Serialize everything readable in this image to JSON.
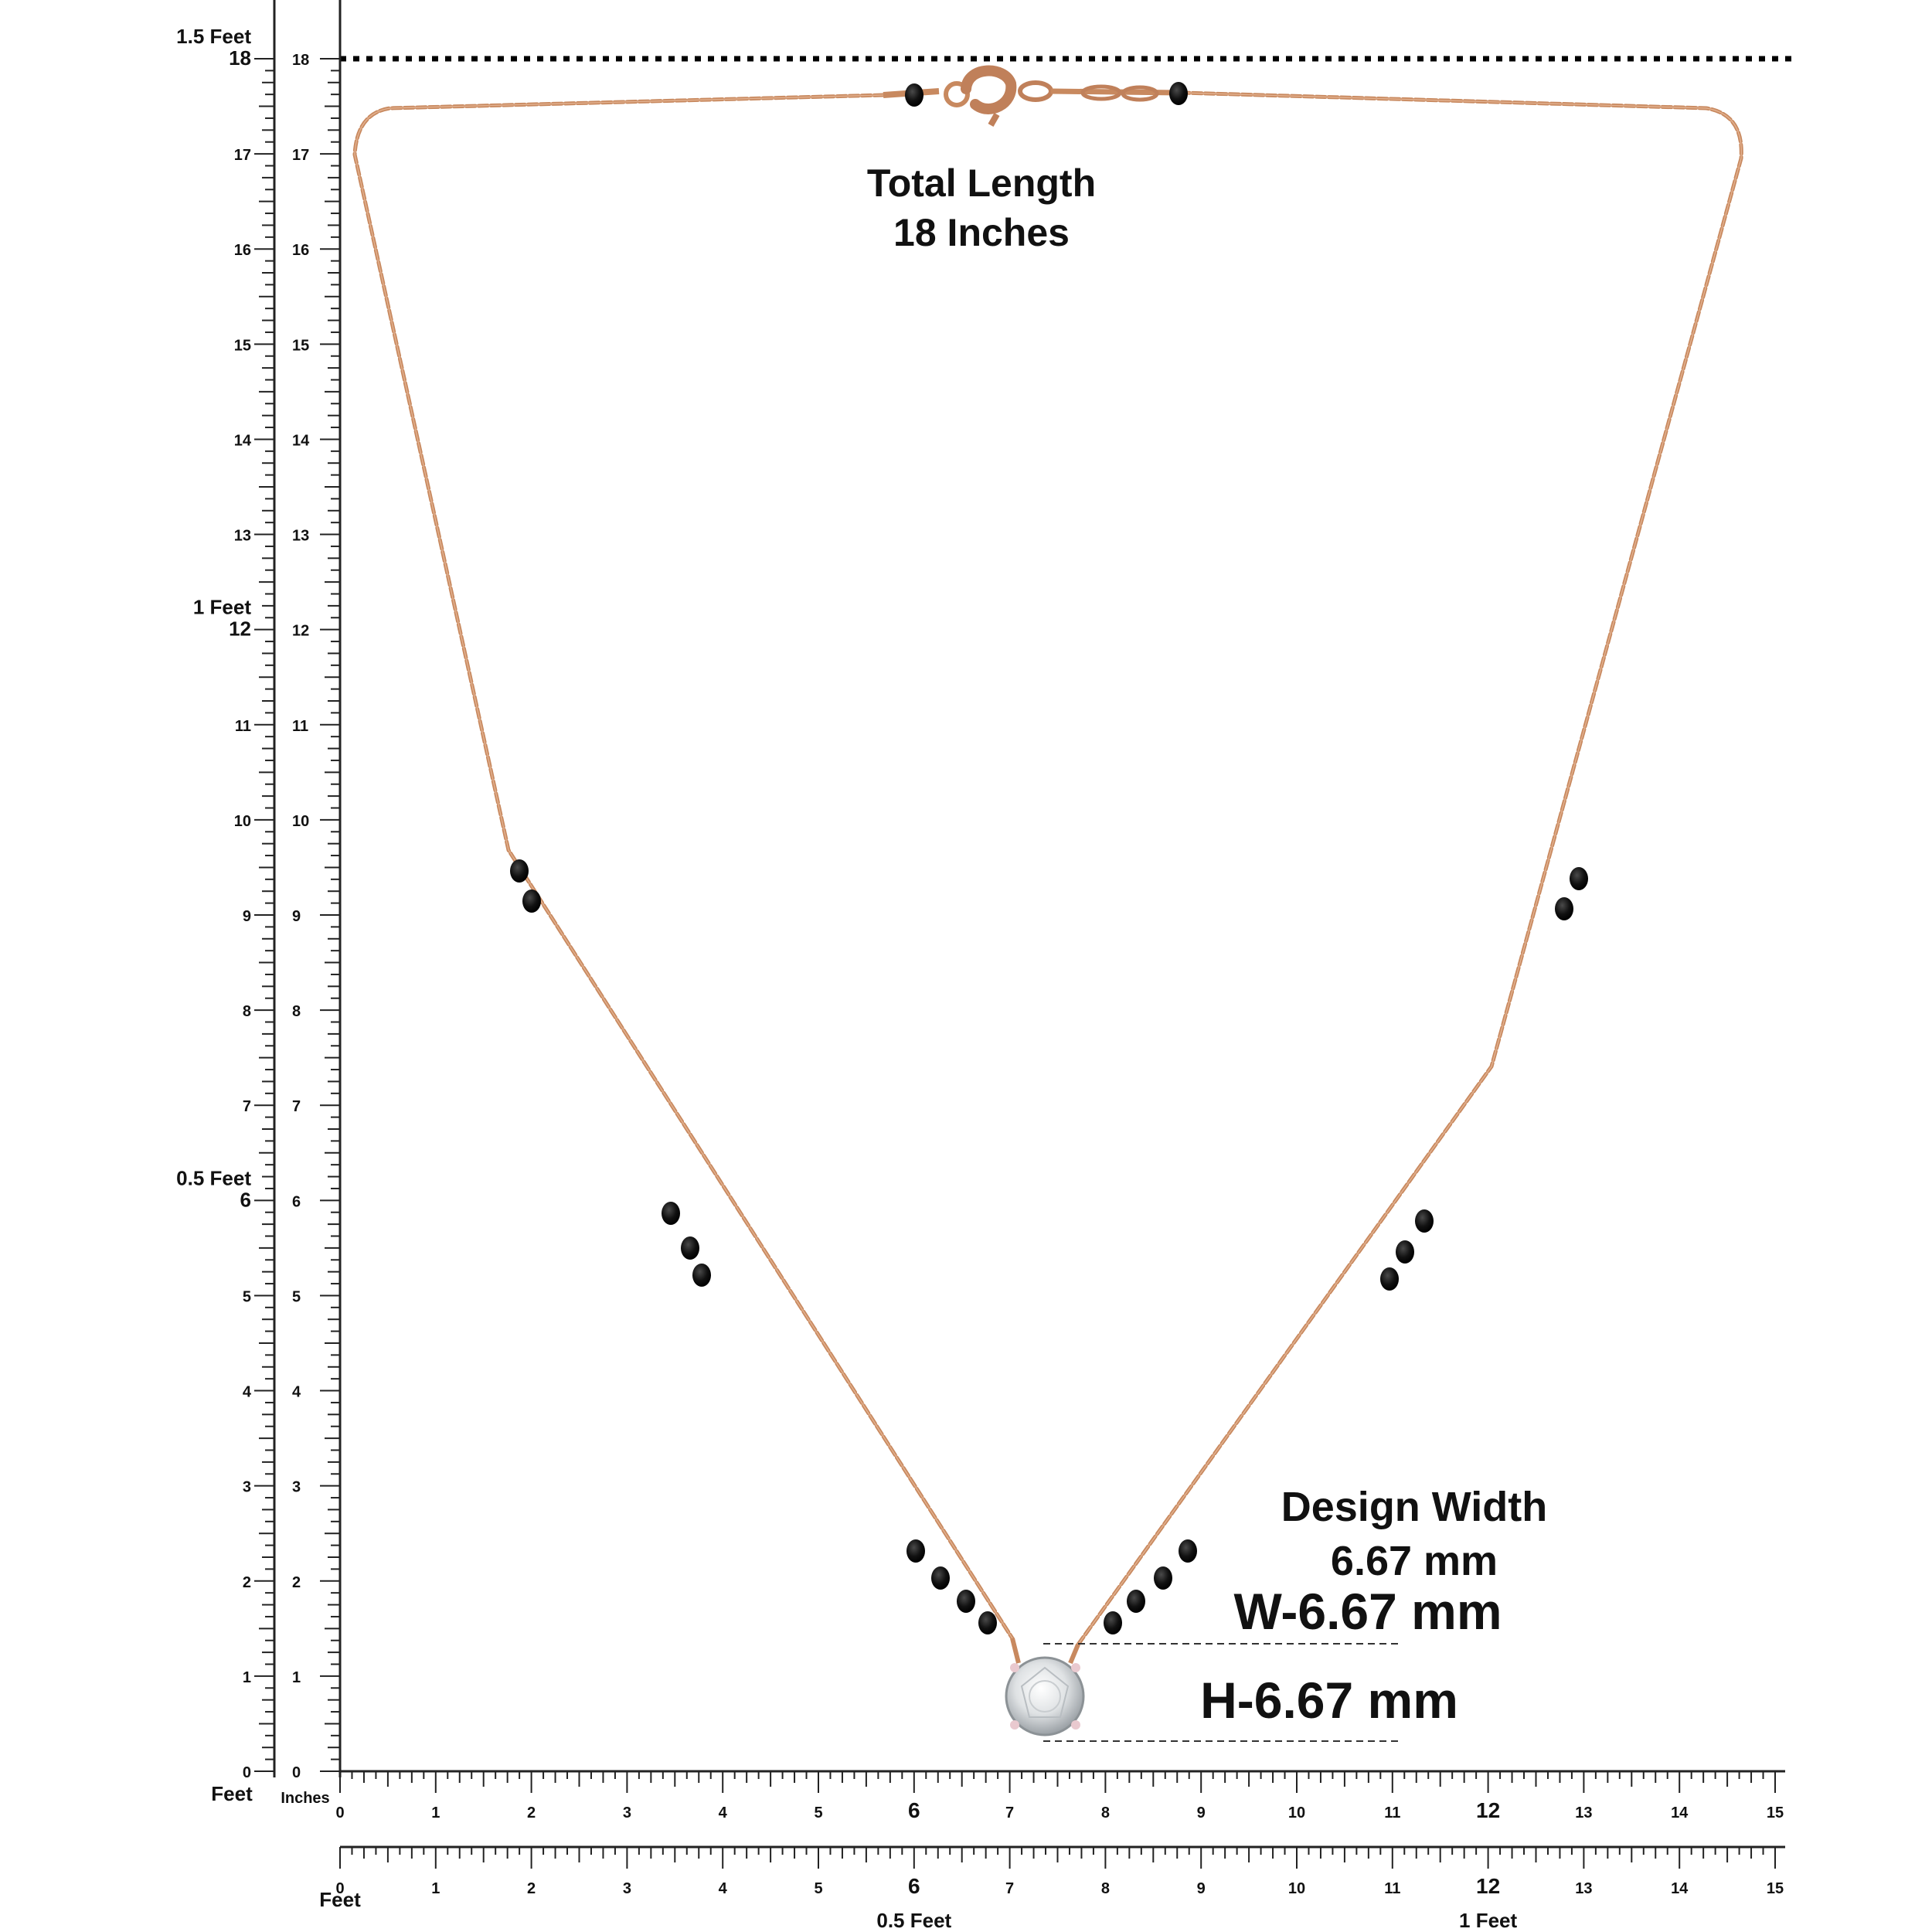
{
  "image": {
    "subject": "Necklace with black beads, lobster clasp and a solitaire pendant, shown against measurement rulers",
    "colors": {
      "chain": "#c8895f",
      "bead": "#111111",
      "stone": "#e6e8ea",
      "ruler": "#222222",
      "background": "#ffffff"
    }
  },
  "labels": {
    "total_length_title": "Total Length",
    "total_length_value": "18 Inches",
    "design_width_title": "Design Width",
    "design_width_value": "6.67 mm",
    "width_dimension": "W-6.67 mm",
    "height_dimension": "H-6.67 mm"
  },
  "vertical_ruler": {
    "feet_marks": [
      {
        "inch": 18,
        "label": "1.5 Feet"
      },
      {
        "inch": 12,
        "label": "1 Feet"
      },
      {
        "inch": 6,
        "label": "0.5 Feet"
      }
    ],
    "bottom_unit_feet": "Feet",
    "bottom_unit_inches": "Inches",
    "inch_labels": [
      "0",
      "1",
      "2",
      "3",
      "4",
      "5",
      "6",
      "7",
      "8",
      "9",
      "10",
      "11",
      "12",
      "13",
      "14",
      "15",
      "16",
      "17",
      "18"
    ]
  },
  "horizontal_ruler_top": {
    "inch_labels": [
      "0",
      "1",
      "2",
      "3",
      "4",
      "5",
      "6",
      "7",
      "8",
      "9",
      "10",
      "11",
      "12",
      "13",
      "14",
      "15"
    ]
  },
  "horizontal_ruler_bottom": {
    "inch_labels": [
      "0",
      "1",
      "2",
      "3",
      "4",
      "5",
      "6",
      "7",
      "8",
      "9",
      "10",
      "11",
      "12",
      "13",
      "14",
      "15"
    ],
    "start_label": "Feet",
    "feet_marks": [
      {
        "inch": 6,
        "label": "0.5 Feet"
      },
      {
        "inch": 12,
        "label": "1 Feet"
      }
    ]
  }
}
